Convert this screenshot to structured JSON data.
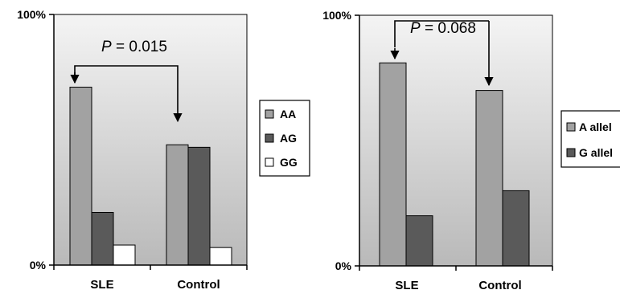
{
  "chart_data": [
    {
      "type": "bar",
      "categories": [
        "SLE",
        "Control"
      ],
      "series": [
        {
          "name": "AA",
          "values": [
            71,
            48
          ]
        },
        {
          "name": "AG",
          "values": [
            21,
            47
          ]
        },
        {
          "name": "GG",
          "values": [
            8,
            7
          ]
        }
      ],
      "ylim": [
        0,
        100
      ],
      "y_ticks": [
        "100%",
        "0%"
      ],
      "annotation": {
        "p_label": "P",
        "p_value": " = 0.015"
      },
      "legend_position": "right",
      "colors": {
        "AA": "#a2a2a2",
        "AG": "#5a5a5a",
        "GG": "#ffffff"
      }
    },
    {
      "type": "bar",
      "categories": [
        "SLE",
        "Control"
      ],
      "series": [
        {
          "name": "A allel",
          "values": [
            81,
            70
          ]
        },
        {
          "name": "G allel",
          "values": [
            20,
            30
          ]
        }
      ],
      "ylim": [
        0,
        100
      ],
      "y_ticks": [
        "100%",
        "0%"
      ],
      "annotation": {
        "p_label": "P",
        "p_value": " = 0.068"
      },
      "legend_position": "right",
      "colors": {
        "A allel": "#a2a2a2",
        "G allel": "#5a5a5a"
      }
    }
  ]
}
